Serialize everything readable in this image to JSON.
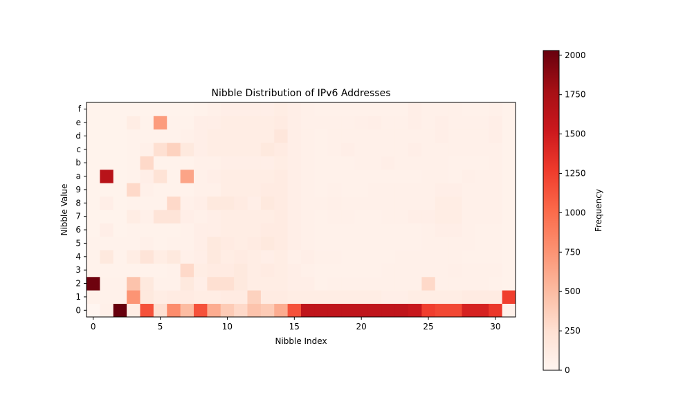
{
  "chart_data": {
    "type": "heatmap",
    "title": "Nibble Distribution of IPv6 Addresses",
    "xlabel": "Nibble Index",
    "ylabel": "Nibble Value",
    "colorbar_label": "Frequency",
    "colormap": [
      "#fff5f0",
      "#fee0d2",
      "#fcbba1",
      "#fc9272",
      "#fb6a4a",
      "#ef3b2c",
      "#cb181d",
      "#a50f15",
      "#67000d"
    ],
    "vmin": 0,
    "vmax": 2030,
    "x_ticks": [
      0,
      5,
      10,
      15,
      20,
      25,
      30
    ],
    "colorbar_ticks": [
      0,
      250,
      500,
      750,
      1000,
      1250,
      1500,
      1750,
      2000
    ],
    "rows": [
      "0",
      "1",
      "2",
      "3",
      "4",
      "5",
      "6",
      "7",
      "8",
      "9",
      "a",
      "b",
      "c",
      "d",
      "e",
      "f"
    ],
    "columns": 32,
    "values": [
      [
        0,
        60,
        2030,
        100,
        1150,
        250,
        800,
        500,
        1150,
        600,
        400,
        300,
        450,
        400,
        600,
        1150,
        1600,
        1600,
        1600,
        1600,
        1600,
        1600,
        1600,
        1600,
        1550,
        1250,
        1200,
        1200,
        1450,
        1450,
        1300,
        50
      ],
      [
        50,
        50,
        50,
        750,
        150,
        100,
        120,
        120,
        100,
        100,
        120,
        120,
        350,
        120,
        120,
        100,
        100,
        100,
        100,
        100,
        100,
        100,
        80,
        80,
        100,
        100,
        100,
        100,
        120,
        120,
        120,
        1250
      ],
      [
        2000,
        50,
        50,
        450,
        150,
        50,
        50,
        150,
        80,
        250,
        250,
        150,
        100,
        100,
        100,
        80,
        80,
        50,
        60,
        60,
        60,
        60,
        60,
        60,
        60,
        300,
        60,
        60,
        60,
        60,
        50,
        40
      ],
      [
        40,
        40,
        40,
        40,
        40,
        40,
        50,
        300,
        100,
        120,
        120,
        150,
        100,
        120,
        100,
        80,
        60,
        50,
        50,
        50,
        50,
        50,
        60,
        60,
        60,
        60,
        60,
        70,
        60,
        60,
        60,
        40
      ],
      [
        40,
        150,
        40,
        100,
        200,
        100,
        150,
        60,
        80,
        150,
        100,
        120,
        100,
        80,
        100,
        60,
        80,
        60,
        60,
        50,
        50,
        50,
        50,
        60,
        60,
        60,
        60,
        60,
        50,
        50,
        50,
        40
      ],
      [
        40,
        40,
        40,
        40,
        60,
        40,
        50,
        50,
        80,
        150,
        120,
        100,
        120,
        150,
        120,
        80,
        60,
        50,
        50,
        50,
        50,
        50,
        50,
        50,
        50,
        60,
        60,
        60,
        60,
        50,
        50,
        40
      ],
      [
        30,
        80,
        30,
        40,
        40,
        40,
        40,
        50,
        80,
        80,
        100,
        100,
        100,
        120,
        120,
        80,
        60,
        50,
        50,
        50,
        50,
        50,
        50,
        50,
        50,
        60,
        80,
        80,
        60,
        50,
        50,
        40
      ],
      [
        30,
        30,
        30,
        100,
        60,
        200,
        200,
        80,
        60,
        80,
        100,
        100,
        100,
        100,
        120,
        80,
        60,
        50,
        60,
        60,
        50,
        50,
        60,
        60,
        80,
        80,
        100,
        100,
        60,
        60,
        60,
        40
      ],
      [
        30,
        80,
        30,
        40,
        40,
        40,
        300,
        60,
        80,
        150,
        150,
        120,
        80,
        150,
        120,
        80,
        60,
        60,
        70,
        60,
        60,
        60,
        60,
        60,
        60,
        60,
        100,
        100,
        60,
        60,
        60,
        40
      ],
      [
        30,
        30,
        30,
        300,
        60,
        40,
        40,
        40,
        60,
        60,
        100,
        100,
        100,
        120,
        120,
        80,
        60,
        50,
        60,
        50,
        50,
        60,
        60,
        60,
        60,
        60,
        80,
        80,
        60,
        60,
        60,
        40
      ],
      [
        30,
        1650,
        30,
        40,
        80,
        220,
        40,
        650,
        60,
        80,
        100,
        100,
        100,
        100,
        120,
        80,
        60,
        50,
        50,
        50,
        50,
        50,
        50,
        50,
        50,
        60,
        60,
        50,
        70,
        60,
        60,
        40
      ],
      [
        30,
        30,
        30,
        40,
        300,
        40,
        40,
        40,
        60,
        60,
        80,
        80,
        80,
        80,
        100,
        80,
        60,
        50,
        50,
        50,
        60,
        60,
        80,
        60,
        60,
        60,
        60,
        50,
        50,
        50,
        60,
        40
      ],
      [
        30,
        30,
        30,
        40,
        60,
        250,
        350,
        150,
        80,
        100,
        100,
        100,
        100,
        150,
        120,
        80,
        60,
        50,
        60,
        80,
        60,
        60,
        60,
        60,
        80,
        60,
        60,
        60,
        60,
        60,
        60,
        40
      ],
      [
        30,
        30,
        30,
        40,
        40,
        40,
        40,
        60,
        80,
        100,
        100,
        100,
        100,
        100,
        180,
        80,
        60,
        50,
        60,
        60,
        60,
        60,
        60,
        60,
        60,
        60,
        80,
        60,
        60,
        60,
        80,
        40
      ],
      [
        30,
        30,
        30,
        100,
        40,
        700,
        40,
        40,
        80,
        80,
        100,
        100,
        100,
        100,
        120,
        80,
        60,
        60,
        60,
        60,
        70,
        80,
        60,
        60,
        80,
        60,
        80,
        60,
        60,
        60,
        80,
        40
      ],
      [
        30,
        30,
        30,
        30,
        30,
        30,
        30,
        30,
        40,
        60,
        80,
        80,
        80,
        80,
        100,
        80,
        60,
        50,
        50,
        50,
        50,
        50,
        50,
        50,
        80,
        60,
        60,
        60,
        50,
        50,
        60,
        40
      ]
    ]
  }
}
